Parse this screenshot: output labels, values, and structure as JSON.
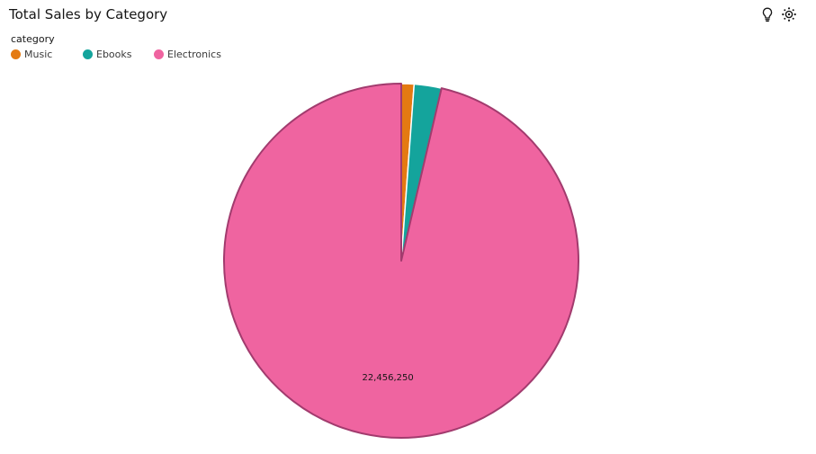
{
  "header": {
    "title": "Total Sales by Category",
    "icons": [
      "lightbulb-icon",
      "settings-icon"
    ]
  },
  "legend": {
    "title": "category",
    "items": [
      {
        "label": "Music",
        "color": "#e47a12"
      },
      {
        "label": "Ebooks",
        "color": "#14a49c"
      },
      {
        "label": "Electronics",
        "color": "#ef64a0"
      }
    ]
  },
  "chart_data": {
    "type": "pie",
    "title": "Total Sales by Category",
    "legend_title": "category",
    "legend_position": "top-left",
    "slices": [
      {
        "label": "Music",
        "value": 270000,
        "color": "#e47a12"
      },
      {
        "label": "Ebooks",
        "value": 580000,
        "color": "#14a49c"
      },
      {
        "label": "Electronics",
        "value": 22456250,
        "color": "#ef64a0"
      }
    ],
    "data_labels": [
      {
        "label": "Electronics",
        "text": "22,456,250"
      }
    ],
    "outline_color": "#a23b6e"
  }
}
